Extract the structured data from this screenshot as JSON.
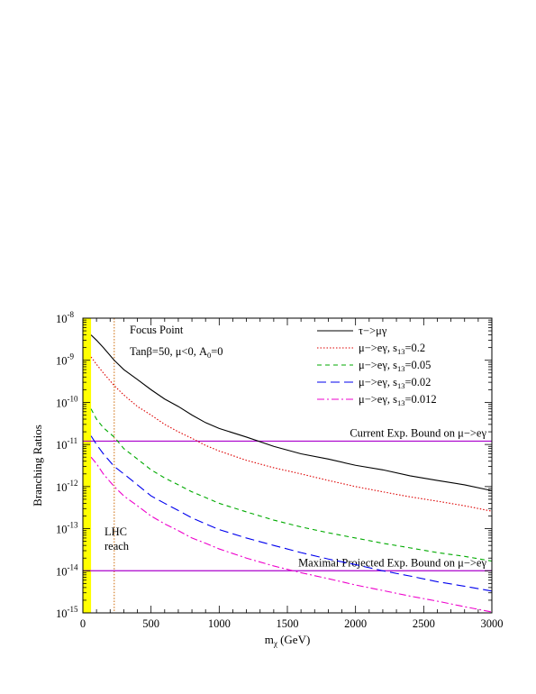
{
  "chart_data": {
    "type": "line",
    "title": "",
    "xlabel": "m",
    "xlabel_sub": "χ",
    "xlabel_unit": " (GeV)",
    "ylabel": "Branching Ratios",
    "xlim": [
      0,
      3000
    ],
    "ylim": [
      1e-15,
      1e-08
    ],
    "yscale": "log",
    "xticks": [
      0,
      500,
      1000,
      1500,
      2000,
      2500,
      3000
    ],
    "xtick_labels": [
      "0",
      "500",
      "1000",
      "1500",
      "2000",
      "2500",
      "3000"
    ],
    "yticks": [
      {
        "base": "10",
        "exp": "-15",
        "value": 1e-15
      },
      {
        "base": "10",
        "exp": "-14",
        "value": 1e-14
      },
      {
        "base": "10",
        "exp": "-13",
        "value": 1e-13
      },
      {
        "base": "10",
        "exp": "-12",
        "value": 1e-12
      },
      {
        "base": "10",
        "exp": "-11",
        "value": 1e-11
      },
      {
        "base": "10",
        "exp": "-10",
        "value": 1e-10
      },
      {
        "base": "10",
        "exp": "-9",
        "value": 1e-09
      },
      {
        "base": "10",
        "exp": "-8",
        "value": 1e-08
      }
    ],
    "grid": false,
    "legend_position": "top-right",
    "annotations": {
      "model_line1": "Focus Point",
      "model_line2": "Tanβ=50, μ<0, A",
      "model_line2_sub": "0",
      "model_line2_tail": "=0",
      "lhc_line1": "LHC",
      "lhc_line2": "reach"
    },
    "hlines": [
      {
        "value": 1.2e-11,
        "color": "#aa00cc",
        "label": "Current Exp. Bound on μ−>eγ"
      },
      {
        "value": 1e-14,
        "color": "#aa00cc",
        "label": "Maximal Projected Exp. Bound on μ−>eγ"
      }
    ],
    "excluded_band": {
      "x": [
        0,
        60
      ],
      "color": "#ffff00"
    },
    "lhc_reach_x": 230,
    "series": [
      {
        "name": "τ−>μγ",
        "label_main": "τ−>μγ",
        "label_sub": "",
        "label_tail": "",
        "color": "#000000",
        "dash": "",
        "x": [
          60,
          100,
          150,
          230,
          300,
          400,
          500,
          600,
          700,
          800,
          900,
          1000,
          1200,
          1400,
          1600,
          1800,
          2000,
          2200,
          2400,
          2600,
          2800,
          3000
        ],
        "y": [
          4e-09,
          3e-09,
          2e-09,
          1e-09,
          6e-10,
          3.5e-10,
          2e-10,
          1.2e-10,
          8e-11,
          5e-11,
          3.3e-11,
          2.4e-11,
          1.5e-11,
          9e-12,
          6e-12,
          4.5e-12,
          3.2e-12,
          2.5e-12,
          1.8e-12,
          1.4e-12,
          1.1e-12,
          8e-13
        ]
      },
      {
        "name": "μ−>eγ, s13=0.2",
        "label_main": "μ−>eγ, s",
        "label_sub": "13",
        "label_tail": "=0.2",
        "color": "#dd0000",
        "dash": "1.5,2",
        "x": [
          60,
          100,
          150,
          230,
          300,
          400,
          500,
          600,
          700,
          800,
          900,
          1000,
          1200,
          1400,
          1600,
          1800,
          2000,
          2200,
          2400,
          2600,
          2800,
          3000
        ],
        "y": [
          1.2e-09,
          8e-10,
          5e-10,
          2.5e-10,
          1.5e-10,
          8e-11,
          5e-11,
          3e-11,
          2e-11,
          1.4e-11,
          9.5e-12,
          7e-12,
          4.2e-12,
          2.8e-12,
          2e-12,
          1.4e-12,
          1e-12,
          7.5e-13,
          5.7e-13,
          4.5e-13,
          3.5e-13,
          2.6e-13
        ]
      },
      {
        "name": "μ−>eγ, s13=0.05",
        "label_main": "μ−>eγ, s",
        "label_sub": "13",
        "label_tail": "=0.05",
        "color": "#00aa00",
        "dash": "5,4",
        "x": [
          60,
          100,
          150,
          230,
          300,
          400,
          500,
          600,
          700,
          800,
          900,
          1000,
          1200,
          1400,
          1600,
          1800,
          2000,
          2200,
          2400,
          2600,
          2800,
          3000
        ],
        "y": [
          7e-11,
          4e-11,
          2.5e-11,
          1.5e-11,
          8e-12,
          4.5e-12,
          2.5e-12,
          1.6e-12,
          1.1e-12,
          7.5e-13,
          5.5e-13,
          4e-13,
          2.5e-13,
          1.6e-13,
          1.1e-13,
          8e-14,
          6e-14,
          4.5e-14,
          3.5e-14,
          2.7e-14,
          2.2e-14,
          1.7e-14
        ]
      },
      {
        "name": "μ−>eγ, s13=0.02",
        "label_main": "μ−>eγ, s",
        "label_sub": "13",
        "label_tail": "=0.02",
        "color": "#0000ee",
        "dash": "10,5",
        "x": [
          60,
          100,
          150,
          230,
          300,
          400,
          500,
          600,
          700,
          800,
          900,
          1000,
          1200,
          1400,
          1600,
          1800,
          2000,
          2200,
          2400,
          2600,
          2800,
          3000
        ],
        "y": [
          1.6e-11,
          1e-11,
          6e-12,
          3e-12,
          2e-12,
          1.1e-12,
          6e-13,
          4e-13,
          2.7e-13,
          1.8e-13,
          1.3e-13,
          9.5e-14,
          6e-14,
          4e-14,
          2.7e-14,
          1.9e-14,
          1.4e-14,
          1e-14,
          7.5e-15,
          5.5e-15,
          4.3e-15,
          3.3e-15
        ]
      },
      {
        "name": "μ−>eγ, s13=0.012",
        "label_main": "μ−>eγ, s",
        "label_sub": "13",
        "label_tail": "=0.012",
        "color": "#ee00cc",
        "dash": "8,3,2,3",
        "x": [
          60,
          100,
          150,
          230,
          300,
          400,
          500,
          600,
          700,
          800,
          900,
          1000,
          1200,
          1400,
          1600,
          1800,
          2000,
          2200,
          2400,
          2600,
          2800,
          3000
        ],
        "y": [
          5e-12,
          3.5e-12,
          2e-12,
          1e-12,
          6e-13,
          3.5e-13,
          2e-13,
          1.3e-13,
          9e-14,
          6e-14,
          4.5e-14,
          3.3e-14,
          2e-14,
          1.3e-14,
          9e-15,
          6.5e-15,
          4.6e-15,
          3.4e-15,
          2.5e-15,
          1.9e-15,
          1.4e-15,
          1.05e-15
        ]
      }
    ]
  }
}
